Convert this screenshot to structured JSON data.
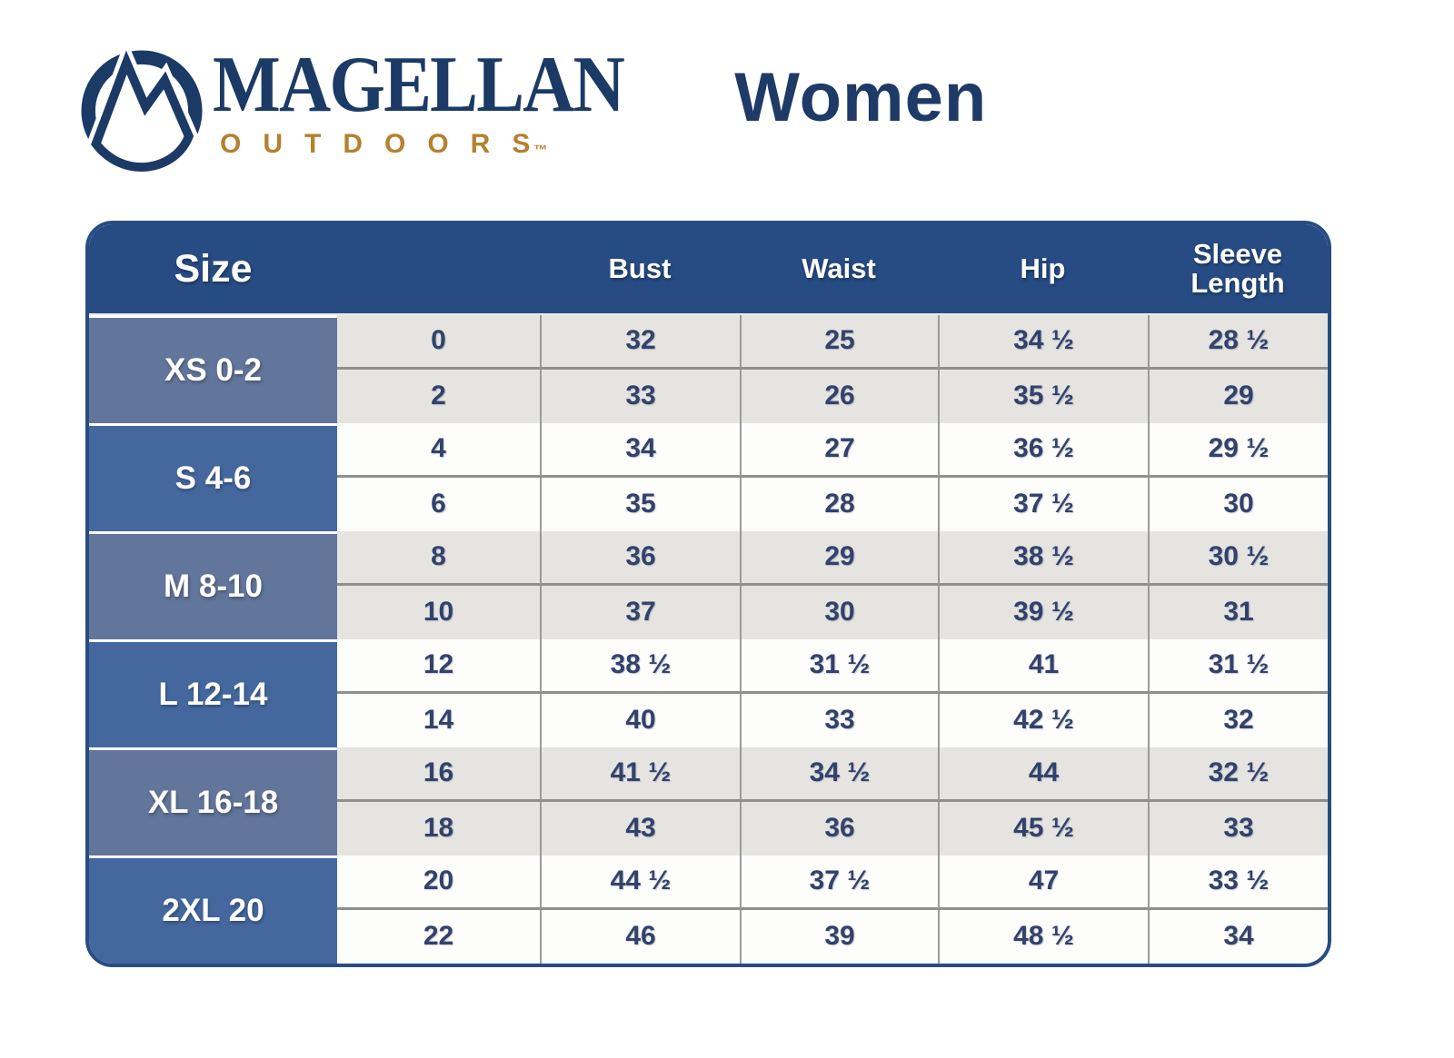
{
  "brand": {
    "name": "MAGELLAN",
    "subtitle": "OUTDOORS",
    "trademark": "™",
    "logo_icon": "mountain-in-circle",
    "navy": "#1b3a66",
    "gold": "#b5812f"
  },
  "page_title": "Women",
  "colors": {
    "header_navy": "#274c83",
    "table_border": "#274c83",
    "group_gray_blue": "#62759a",
    "group_blue": "#44689e",
    "row_gray": "#e5e4e1",
    "row_white": "#fdfdfc",
    "value_navy": "#32426b"
  },
  "table": {
    "headers": [
      "Size",
      "",
      "Bust",
      "Waist",
      "Hip",
      "Sleeve Length"
    ],
    "groups": [
      {
        "label": "XS 0-2",
        "shade": "gray",
        "rows": [
          [
            "0",
            "32",
            "25",
            "34 ½",
            "28 ½"
          ],
          [
            "2",
            "33",
            "26",
            "35 ½",
            "29"
          ]
        ]
      },
      {
        "label": "S 4-6",
        "shade": "blue",
        "rows": [
          [
            "4",
            "34",
            "27",
            "36 ½",
            "29 ½"
          ],
          [
            "6",
            "35",
            "28",
            "37 ½",
            "30"
          ]
        ]
      },
      {
        "label": "M 8-10",
        "shade": "gray",
        "rows": [
          [
            "8",
            "36",
            "29",
            "38 ½",
            "30 ½"
          ],
          [
            "10",
            "37",
            "30",
            "39 ½",
            "31"
          ]
        ]
      },
      {
        "label": "L 12-14",
        "shade": "blue",
        "rows": [
          [
            "12",
            "38 ½",
            "31 ½",
            "41",
            "31 ½"
          ],
          [
            "14",
            "40",
            "33",
            "42 ½",
            "32"
          ]
        ]
      },
      {
        "label": "XL 16-18",
        "shade": "gray",
        "rows": [
          [
            "16",
            "41 ½",
            "34 ½",
            "44",
            "32 ½"
          ],
          [
            "18",
            "43",
            "36",
            "45 ½",
            "33"
          ]
        ]
      },
      {
        "label": "2XL 20",
        "shade": "blue",
        "rows": [
          [
            "20",
            "44 ½",
            "37 ½",
            "47",
            "33 ½"
          ],
          [
            "22",
            "46",
            "39",
            "48 ½",
            "34"
          ]
        ]
      }
    ]
  },
  "chart_data": {
    "type": "table",
    "title": "Magellan Outdoors Women Size Chart",
    "columns": [
      "Size",
      "",
      "Bust",
      "Waist",
      "Hip",
      "Sleeve Length"
    ],
    "rows": [
      [
        "XS 0-2",
        "0",
        "32",
        "25",
        "34 ½",
        "28 ½"
      ],
      [
        "XS 0-2",
        "2",
        "33",
        "26",
        "35 ½",
        "29"
      ],
      [
        "S 4-6",
        "4",
        "34",
        "27",
        "36 ½",
        "29 ½"
      ],
      [
        "S 4-6",
        "6",
        "35",
        "28",
        "37 ½",
        "30"
      ],
      [
        "M 8-10",
        "8",
        "36",
        "29",
        "38 ½",
        "30 ½"
      ],
      [
        "M 8-10",
        "10",
        "37",
        "30",
        "39 ½",
        "31"
      ],
      [
        "L 12-14",
        "12",
        "38 ½",
        "31 ½",
        "41",
        "31 ½"
      ],
      [
        "L 12-14",
        "14",
        "40",
        "33",
        "42 ½",
        "32"
      ],
      [
        "XL 16-18",
        "16",
        "41 ½",
        "34 ½",
        "44",
        "32 ½"
      ],
      [
        "XL 16-18",
        "18",
        "43",
        "36",
        "45 ½",
        "33"
      ],
      [
        "2XL 20",
        "20",
        "44 ½",
        "37 ½",
        "47",
        "33 ½"
      ],
      [
        "2XL 20",
        "22",
        "46",
        "39",
        "48 ½",
        "34"
      ]
    ]
  }
}
